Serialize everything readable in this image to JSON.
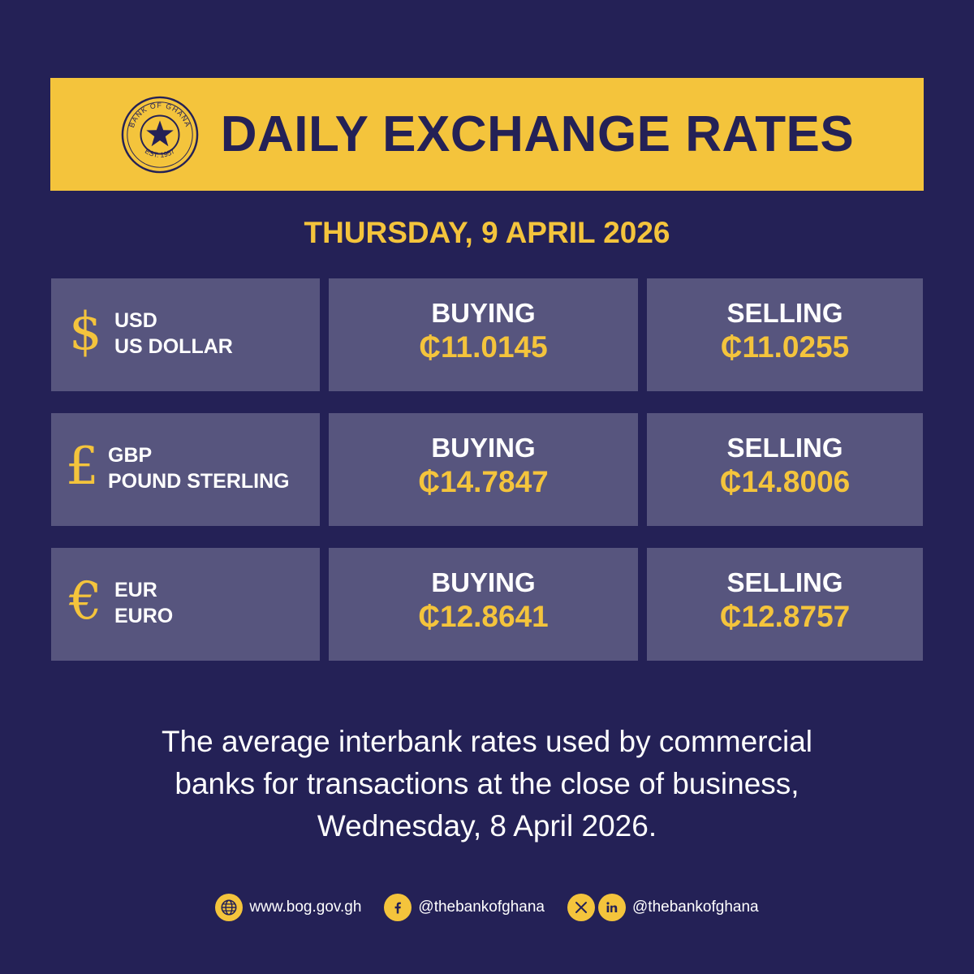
{
  "colors": {
    "background": "#242156",
    "accent": "#f4c43c",
    "cell": "#57557e",
    "text": "#ffffff"
  },
  "header": {
    "seal_top_text": "BANK OF GHANA",
    "seal_bottom_text": "EST. 1957",
    "title": "DAILY EXCHANGE RATES"
  },
  "date": "THURSDAY, 9 APRIL 2026",
  "rates": [
    {
      "symbol": "$",
      "code": "USD",
      "name": "US DOLLAR",
      "buying_label": "BUYING",
      "buying": "₵11.0145",
      "selling_label": "SELLING",
      "selling": "₵11.0255"
    },
    {
      "symbol": "£",
      "code": "GBP",
      "name": "POUND STERLING",
      "buying_label": "BUYING",
      "buying": "₵14.7847",
      "selling_label": "SELLING",
      "selling": "₵14.8006"
    },
    {
      "symbol": "€",
      "code": "EUR",
      "name": "EURO",
      "buying_label": "BUYING",
      "buying": "₵12.8641",
      "selling_label": "SELLING",
      "selling": "₵12.8757"
    }
  ],
  "footnote": {
    "line1": "The average interbank rates used by commercial",
    "line2": "banks for transactions at the close of business,",
    "line3": "Wednesday, 8 April 2026."
  },
  "socials": {
    "website": {
      "icon": "globe-icon",
      "text": "www.bog.gov.gh"
    },
    "facebook": {
      "icon": "facebook-icon",
      "text": "@thebankofghana"
    },
    "x_linkedin": {
      "icons": [
        "x-icon",
        "linkedin-icon"
      ],
      "text": "@thebankofghana"
    }
  }
}
